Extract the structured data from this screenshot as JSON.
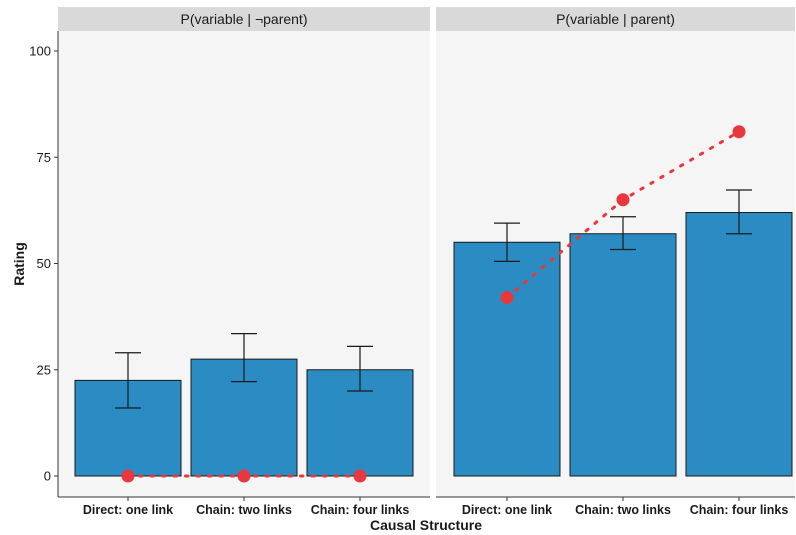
{
  "chart_data": {
    "type": "bar",
    "xlabel": "Causal Structure",
    "ylabel": "Rating",
    "ylim": [
      0,
      100
    ],
    "yticks": [
      0,
      25,
      50,
      75,
      100
    ],
    "categories": [
      "Direct: one link",
      "Chain: two links",
      "Chain: four links"
    ],
    "facets": [
      {
        "label": "P(variable | ¬parent)",
        "bars": [
          22.5,
          27.5,
          25
        ],
        "error_low": [
          16,
          22.2,
          20
        ],
        "error_high": [
          29,
          33.5,
          30.5
        ],
        "points": [
          0,
          0,
          0
        ]
      },
      {
        "label": "P(variable | parent)",
        "bars": [
          55,
          57,
          62
        ],
        "error_low": [
          50.5,
          53.3,
          57
        ],
        "error_high": [
          59.5,
          61,
          67.3
        ],
        "points": [
          42,
          65,
          81
        ]
      }
    ],
    "colors": {
      "bar": "#2b8cc4",
      "point": "#e8383d",
      "strip": "#d9d9d9",
      "panel": "#f5f5f5"
    },
    "grid": false
  }
}
